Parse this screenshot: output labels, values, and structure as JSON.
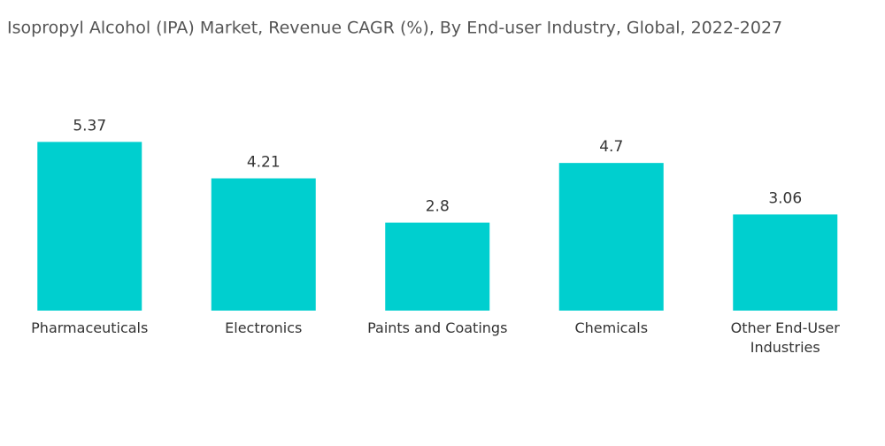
{
  "chart_data": {
    "type": "bar",
    "title": "Isopropyl Alcohol (IPA) Market, Revenue CAGR (%), By End-user Industry, Global, 2022-2027",
    "categories": [
      "Pharmaceuticals",
      "Electronics",
      "Paints and Coatings",
      "Chemicals",
      "Other End-User Industries"
    ],
    "values": [
      5.37,
      4.21,
      2.8,
      4.7,
      3.06
    ],
    "color": "#00cfcf",
    "ylim": [
      0,
      6
    ]
  }
}
